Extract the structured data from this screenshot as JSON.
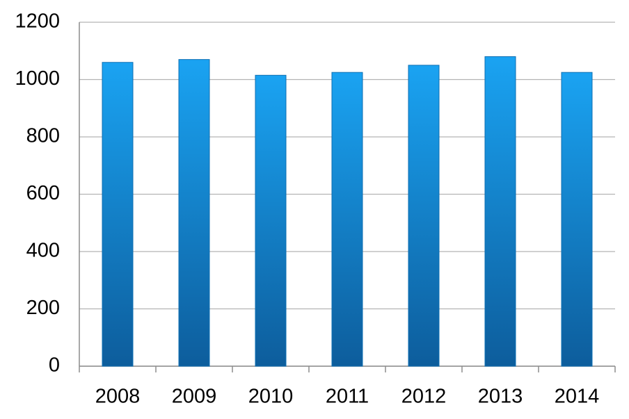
{
  "chart_data": {
    "type": "bar",
    "categories": [
      "2008",
      "2009",
      "2010",
      "2011",
      "2012",
      "2013",
      "2014"
    ],
    "values": [
      1060,
      1070,
      1015,
      1025,
      1050,
      1080,
      1025
    ],
    "color": "#1aa3f2",
    "ylim": [
      0,
      1200
    ],
    "yticks": [
      0,
      200,
      400,
      600,
      800,
      1000,
      1200
    ],
    "grid": true
  }
}
